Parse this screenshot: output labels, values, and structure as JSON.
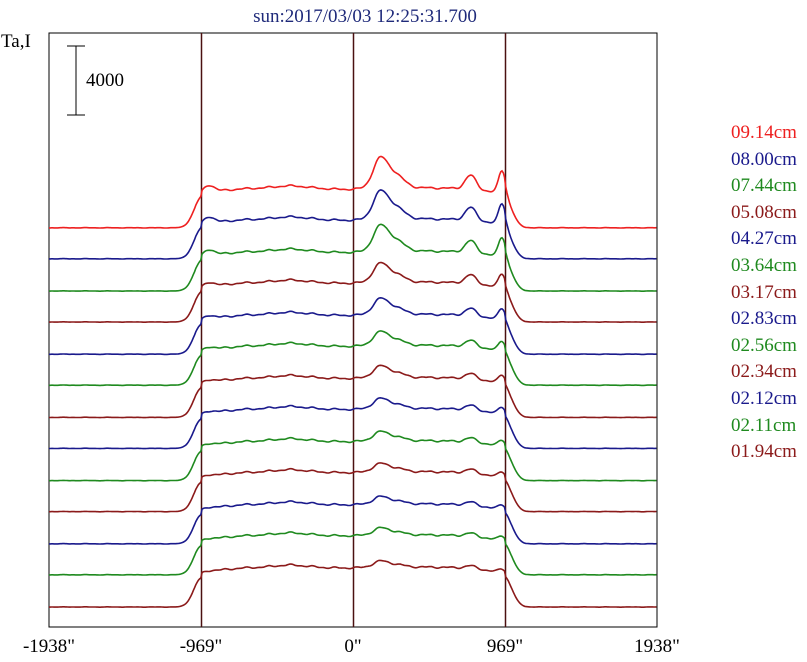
{
  "chart_data": {
    "type": "line",
    "title": "sun:2017/03/03 12:25:31.700",
    "ylabel": "Ta,I",
    "scale_bar_label": "4000",
    "scale_bar_value": 4000,
    "x_tick_labels": [
      "-1938\"",
      "-969\"",
      "0\"",
      "969\"",
      "1938\""
    ],
    "x_ticks": [
      -1938,
      -969,
      0,
      969,
      1938
    ],
    "xlim": [
      -1938,
      1938
    ],
    "vertical_lines": [
      -969,
      0,
      969
    ],
    "legend_position": "right",
    "series": [
      {
        "name": "09.14cm",
        "color": "#ee2020",
        "offset": 12,
        "peak": 1.0,
        "hump": 1.0
      },
      {
        "name": "08.00cm",
        "color": "#1a1a8c",
        "offset": 11,
        "peak": 0.92,
        "hump": 0.95
      },
      {
        "name": "07.44cm",
        "color": "#1f8a1f",
        "offset": 10,
        "peak": 0.85,
        "hump": 0.9
      },
      {
        "name": "05.08cm",
        "color": "#8b1a1a",
        "offset": 9,
        "peak": 0.62,
        "hump": 0.8
      },
      {
        "name": "04.27cm",
        "color": "#1a1a8c",
        "offset": 8,
        "peak": 0.52,
        "hump": 0.75
      },
      {
        "name": "03.64cm",
        "color": "#1f8a1f",
        "offset": 7,
        "peak": 0.45,
        "hump": 0.72
      },
      {
        "name": "03.17cm",
        "color": "#8b1a1a",
        "offset": 6,
        "peak": 0.38,
        "hump": 0.7
      },
      {
        "name": "02.83cm",
        "color": "#1a1a8c",
        "offset": 5,
        "peak": 0.33,
        "hump": 0.68
      },
      {
        "name": "02.56cm",
        "color": "#1f8a1f",
        "offset": 4,
        "peak": 0.3,
        "hump": 0.66
      },
      {
        "name": "02.34cm",
        "color": "#8b1a1a",
        "offset": 3,
        "peak": 0.27,
        "hump": 0.65
      },
      {
        "name": "02.12cm",
        "color": "#1a1a8c",
        "offset": 2,
        "peak": 0.24,
        "hump": 0.64
      },
      {
        "name": "02.11cm",
        "color": "#1f8a1f",
        "offset": 1,
        "peak": 0.23,
        "hump": 0.64
      },
      {
        "name": "01.94cm",
        "color": "#8b1a1a",
        "offset": 0,
        "peak": 0.2,
        "hump": 0.63
      }
    ]
  }
}
